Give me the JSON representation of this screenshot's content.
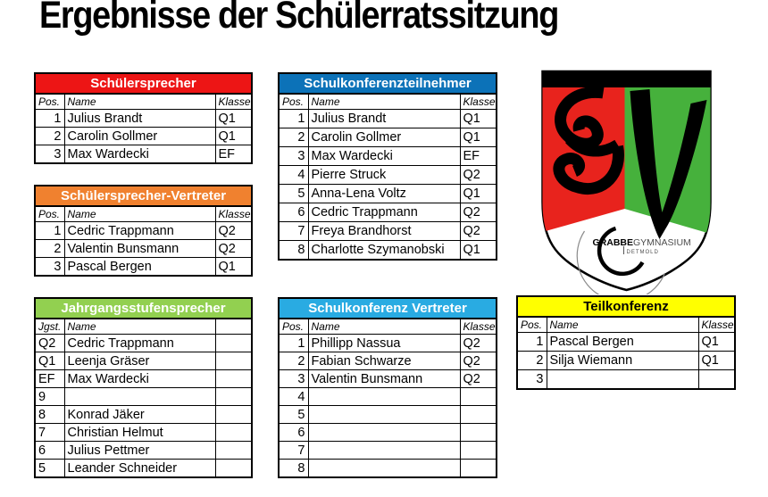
{
  "page": {
    "title": "Ergebnisse der Schülerratssitzung",
    "background": "#FFFFFF"
  },
  "tables": [
    {
      "name": "schuelersprecher",
      "title": "Schülersprecher",
      "header_bg": "#ED1515",
      "header_text_color": "#FFFFFF",
      "columns": [
        "Pos.",
        "Name",
        "Klasse"
      ],
      "pos_align": "right",
      "rows": [
        [
          "1",
          "Julius Brandt",
          "Q1"
        ],
        [
          "2",
          "Carolin Gollmer",
          "Q1"
        ],
        [
          "3",
          "Max Wardecki",
          "EF"
        ]
      ]
    },
    {
      "name": "schuelersprecher-vertreter",
      "title": "Schülersprecher-Vertreter",
      "header_bg": "#F0812F",
      "header_text_color": "#FFFFFF",
      "columns": [
        "Pos.",
        "Name",
        "Klasse"
      ],
      "pos_align": "right",
      "rows": [
        [
          "1",
          "Cedric Trappmann",
          "Q2"
        ],
        [
          "2",
          "Valentin Bunsmann",
          "Q2"
        ],
        [
          "3",
          "Pascal Bergen",
          "Q1"
        ]
      ]
    },
    {
      "name": "schulkonferenzteilnehmer",
      "title": "Schulkonferenzteilnehmer",
      "header_bg": "#0C72B8",
      "header_text_color": "#FFFFFF",
      "columns": [
        "Pos.",
        "Name",
        "Klasse"
      ],
      "pos_align": "right",
      "rows": [
        [
          "1",
          "Julius Brandt",
          "Q1"
        ],
        [
          "2",
          "Carolin Gollmer",
          "Q1"
        ],
        [
          "3",
          "Max Wardecki",
          "EF"
        ],
        [
          "4",
          "Pierre Struck",
          "Q2"
        ],
        [
          "5",
          "Anna-Lena Voltz",
          "Q1"
        ],
        [
          "6",
          "Cedric Trappmann",
          "Q2"
        ],
        [
          "7",
          "Freya Brandhorst",
          "Q2"
        ],
        [
          "8",
          "Charlotte Szymanobski",
          "Q1"
        ]
      ]
    },
    {
      "name": "jahrgangsstufensprecher",
      "title": "Jahrgangsstufensprecher",
      "header_bg": "#92D050",
      "header_text_color": "#FFFFFF",
      "columns": [
        "Jgst.",
        "Name",
        ""
      ],
      "pos_align": "left",
      "rows": [
        [
          "Q2",
          "Cedric Trappmann",
          ""
        ],
        [
          "Q1",
          "Leenja Gräser",
          ""
        ],
        [
          "EF",
          "Max Wardecki",
          ""
        ],
        [
          "9",
          "",
          ""
        ],
        [
          "8",
          "Konrad Jäker",
          ""
        ],
        [
          "7",
          "Christian Helmut",
          ""
        ],
        [
          "6",
          "Julius Pettmer",
          ""
        ],
        [
          "5",
          "Leander Schneider",
          ""
        ]
      ]
    },
    {
      "name": "schulkonferenz-vertreter",
      "title": "Schulkonferenz Vertreter",
      "header_bg": "#29ABE2",
      "header_text_color": "#FFFFFF",
      "columns": [
        "Pos.",
        "Name",
        "Klasse"
      ],
      "pos_align": "right",
      "rows": [
        [
          "1",
          "Phillipp Nassua",
          "Q2"
        ],
        [
          "2",
          "Fabian Schwarze",
          "Q2"
        ],
        [
          "3",
          "Valentin Bunsmann",
          "Q2"
        ],
        [
          "4",
          "",
          ""
        ],
        [
          "5",
          "",
          ""
        ],
        [
          "6",
          "",
          ""
        ],
        [
          "7",
          "",
          ""
        ],
        [
          "8",
          "",
          ""
        ]
      ]
    },
    {
      "name": "teilkonferenz",
      "title": "Teilkonferenz",
      "header_bg": "#FFFF00",
      "header_text_color": "#000000",
      "columns": [
        "Pos.",
        "Name",
        "Klasse"
      ],
      "pos_align": "right",
      "rows": [
        [
          "1",
          "Pascal Bergen",
          "Q1"
        ],
        [
          "2",
          "Silja Wiemann",
          "Q1"
        ],
        [
          "3",
          "",
          ""
        ]
      ]
    }
  ],
  "logo": {
    "name_bold": "GRABBE",
    "name_regular": "GYMNASIUM",
    "city": "DETMOLD",
    "red": "#E8231D",
    "green": "#46B13C",
    "black": "#000000"
  }
}
